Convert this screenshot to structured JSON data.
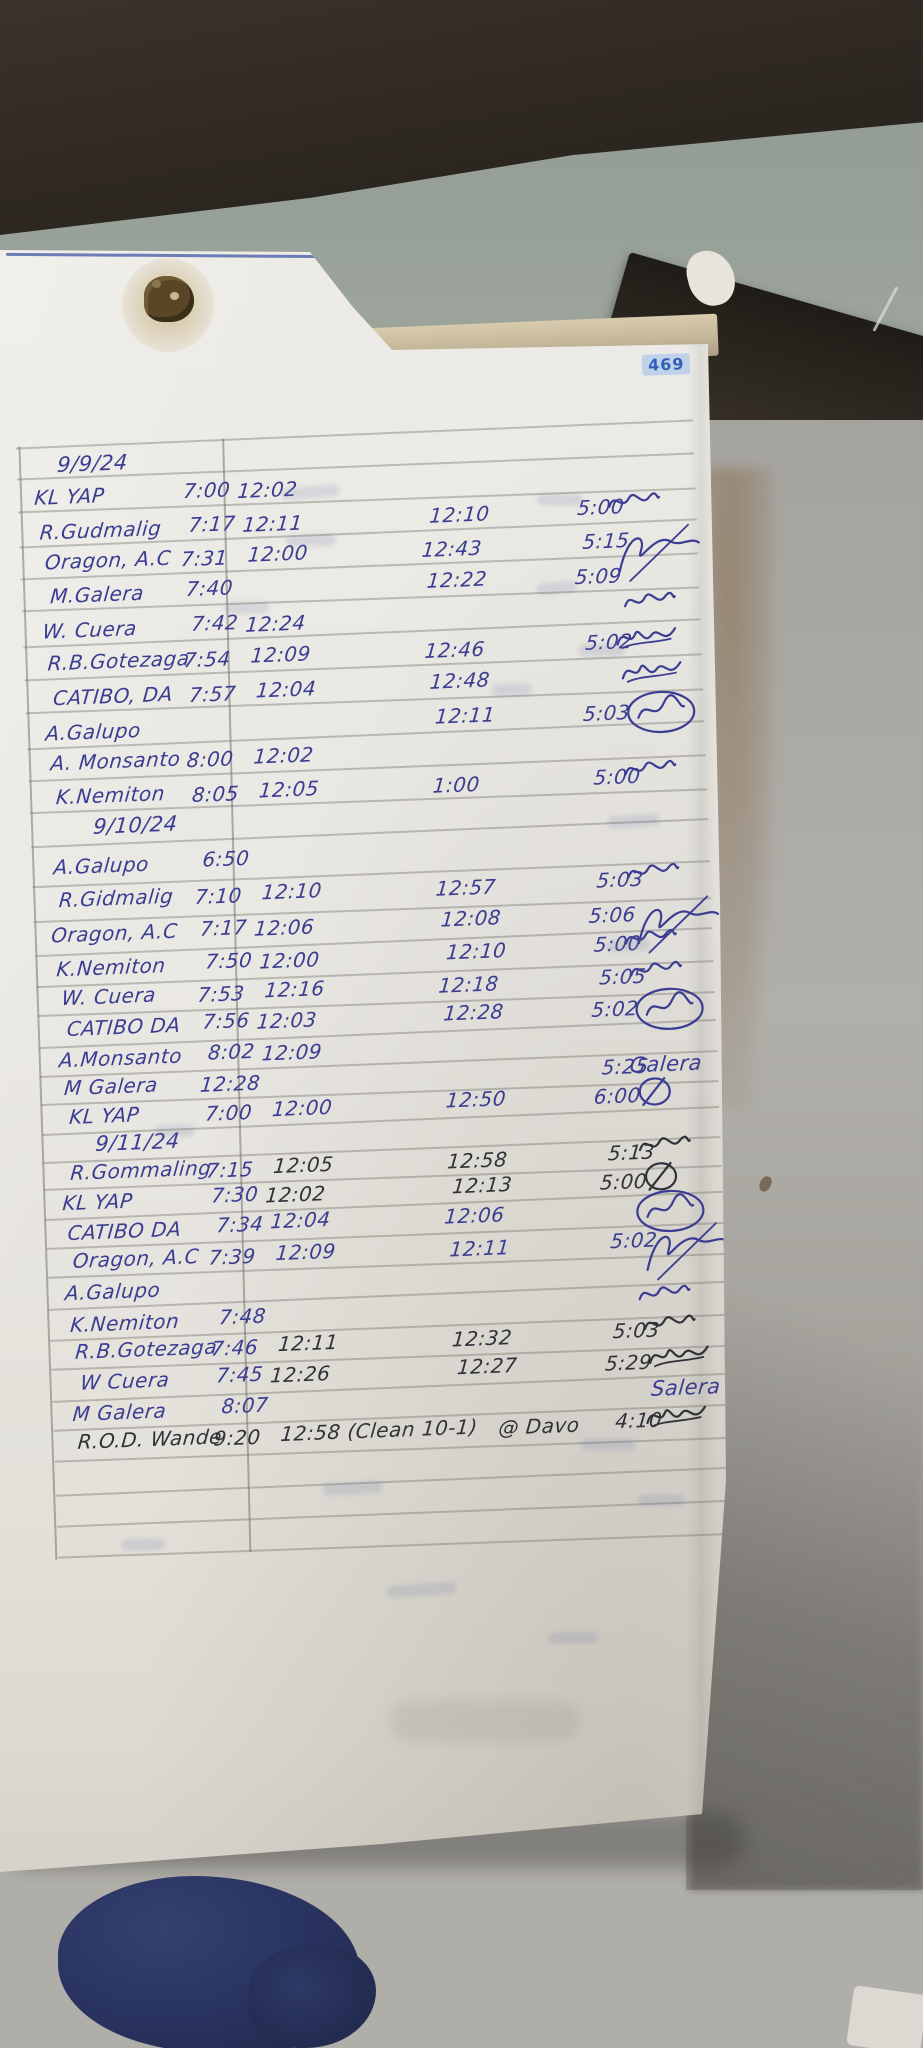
{
  "page_number": "469",
  "log": {
    "sections": [
      {
        "date": "9/9/24",
        "rows": [
          {
            "name": "KL YAP",
            "time_in": "7:00",
            "lunch_out": "12:02",
            "lunch_in": "",
            "time_out": "",
            "sig": ""
          },
          {
            "name": "R.Gudmalig",
            "time_in": "7:17",
            "lunch_out": "12:11",
            "lunch_in": "12:10",
            "time_out": "5:00",
            "sig": "loop"
          },
          {
            "name": "Oragon, A.C",
            "time_in": "7:31",
            "lunch_out": "12:00",
            "lunch_in": "12:43",
            "time_out": "5:15",
            "sig": "flourish"
          },
          {
            "name": "M.Galera",
            "time_in": "7:40",
            "lunch_out": "",
            "lunch_in": "12:22",
            "time_out": "5:09",
            "sig": ""
          },
          {
            "name": "W. Cuera",
            "time_in": "7:42",
            "lunch_out": "12:24",
            "lunch_in": "",
            "time_out": "",
            "sig": "loop"
          },
          {
            "name": "R.B.Gotezaga",
            "time_in": "7:54",
            "lunch_out": "12:09",
            "lunch_in": "12:46",
            "time_out": "5:02",
            "sig": "scrawl"
          },
          {
            "name": "CATIBO, DA",
            "time_in": "7:57",
            "lunch_out": "12:04",
            "lunch_in": "12:48",
            "time_out": "",
            "sig": "scrawl"
          },
          {
            "name": "A.Galupo",
            "time_in": "",
            "lunch_out": "",
            "lunch_in": "12:11",
            "time_out": "5:03",
            "sig": "circle"
          },
          {
            "name": "A. Monsanto",
            "time_in": "8:00",
            "lunch_out": "12:02",
            "lunch_in": "",
            "time_out": "",
            "sig": ""
          },
          {
            "name": "K.Nemiton",
            "time_in": "8:05",
            "lunch_out": "12:05",
            "lunch_in": "1:00",
            "time_out": "5:00",
            "sig": "loop"
          }
        ]
      },
      {
        "date": "9/10/24",
        "rows": [
          {
            "name": "A.Galupo",
            "time_in": "6:50",
            "lunch_out": "",
            "lunch_in": "",
            "time_out": "",
            "sig": ""
          },
          {
            "name": "R.Gidmalig",
            "time_in": "7:10",
            "lunch_out": "12:10",
            "lunch_in": "12:57",
            "time_out": "5:03",
            "sig": "loop"
          },
          {
            "name": "Oragon, A.C",
            "time_in": "7:17",
            "lunch_out": "12:06",
            "lunch_in": "12:08",
            "time_out": "5:06",
            "sig": "flourish"
          },
          {
            "name": "K.Nemiton",
            "time_in": "7:50",
            "lunch_out": "12:00",
            "lunch_in": "12:10",
            "time_out": "5:00",
            "sig": "loop"
          },
          {
            "name": "W. Cuera",
            "time_in": "7:53",
            "lunch_out": "12:16",
            "lunch_in": "12:18",
            "time_out": "5:05",
            "sig": "loop"
          },
          {
            "name": "CATIBO DA",
            "time_in": "7:56",
            "lunch_out": "12:03",
            "lunch_in": "12:28",
            "time_out": "5:02",
            "sig": "circle"
          },
          {
            "name": "A.Monsanto",
            "time_in": "8:02",
            "lunch_out": "12:09",
            "lunch_in": "",
            "time_out": "",
            "sig": ""
          },
          {
            "name": "M Galera",
            "time_in": "12:28",
            "lunch_out": "",
            "lunch_in": "",
            "time_out": "5:25",
            "sig": "text:Galera"
          },
          {
            "name": "KL YAP",
            "time_in": "7:00",
            "lunch_out": "12:00",
            "lunch_in": "12:50",
            "time_out": "6:00",
            "sig": "circle-slash"
          }
        ]
      },
      {
        "date": "9/11/24",
        "rows": [
          {
            "name": "R.Gommaling",
            "time_in": "7:15",
            "lunch_out": "12:05",
            "lunch_in": "12:58",
            "time_out": "5:13",
            "sig": "loop",
            "ink": "dark"
          },
          {
            "name": "KL YAP",
            "time_in": "7:30",
            "lunch_out": "12:02",
            "lunch_in": "12:13",
            "time_out": "5:00",
            "sig": "circle-slash",
            "ink": "dark"
          },
          {
            "name": "CATIBO DA",
            "time_in": "7:34",
            "lunch_out": "12:04",
            "lunch_in": "12:06",
            "time_out": "",
            "sig": "circle"
          },
          {
            "name": "Oragon, A.C",
            "time_in": "7:39",
            "lunch_out": "12:09",
            "lunch_in": "12:11",
            "time_out": "5:02",
            "sig": "flourish"
          },
          {
            "name": "A.Galupo",
            "time_in": "",
            "lunch_out": "",
            "lunch_in": "",
            "time_out": "",
            "sig": ""
          },
          {
            "name": "K.Nemiton",
            "time_in": "7:48",
            "lunch_out": "",
            "lunch_in": "",
            "time_out": "",
            "sig": "loop"
          },
          {
            "name": "R.B.Gotezaga",
            "time_in": "7:46",
            "lunch_out": "12:11",
            "lunch_in": "12:32",
            "time_out": "5:03",
            "sig": "loop",
            "ink": "dark"
          },
          {
            "name": "W Cuera",
            "time_in": "7:45",
            "lunch_out": "12:26",
            "lunch_in": "12:27",
            "time_out": "5:29",
            "sig": "scrawl",
            "ink": "dark"
          },
          {
            "name": "M Galera",
            "time_in": "8:07",
            "lunch_out": "",
            "lunch_in": "",
            "time_out": "",
            "sig": "text:Salera"
          },
          {
            "name": "R.O.D. Wande",
            "time_in": "9:20",
            "lunch_out": "12:58 (Clean 10-1)",
            "lunch_in": "@ Davo",
            "time_out": "4:10",
            "sig": "scrawl",
            "ink": "dark",
            "ink_name": "dark"
          }
        ]
      }
    ]
  },
  "ink_colors": {
    "blue": "#3a3d92",
    "dark": "#2f3238"
  },
  "accent_colors": {
    "page_badge_text": "#2f62b8",
    "top_rule_line": "#5568ab"
  }
}
